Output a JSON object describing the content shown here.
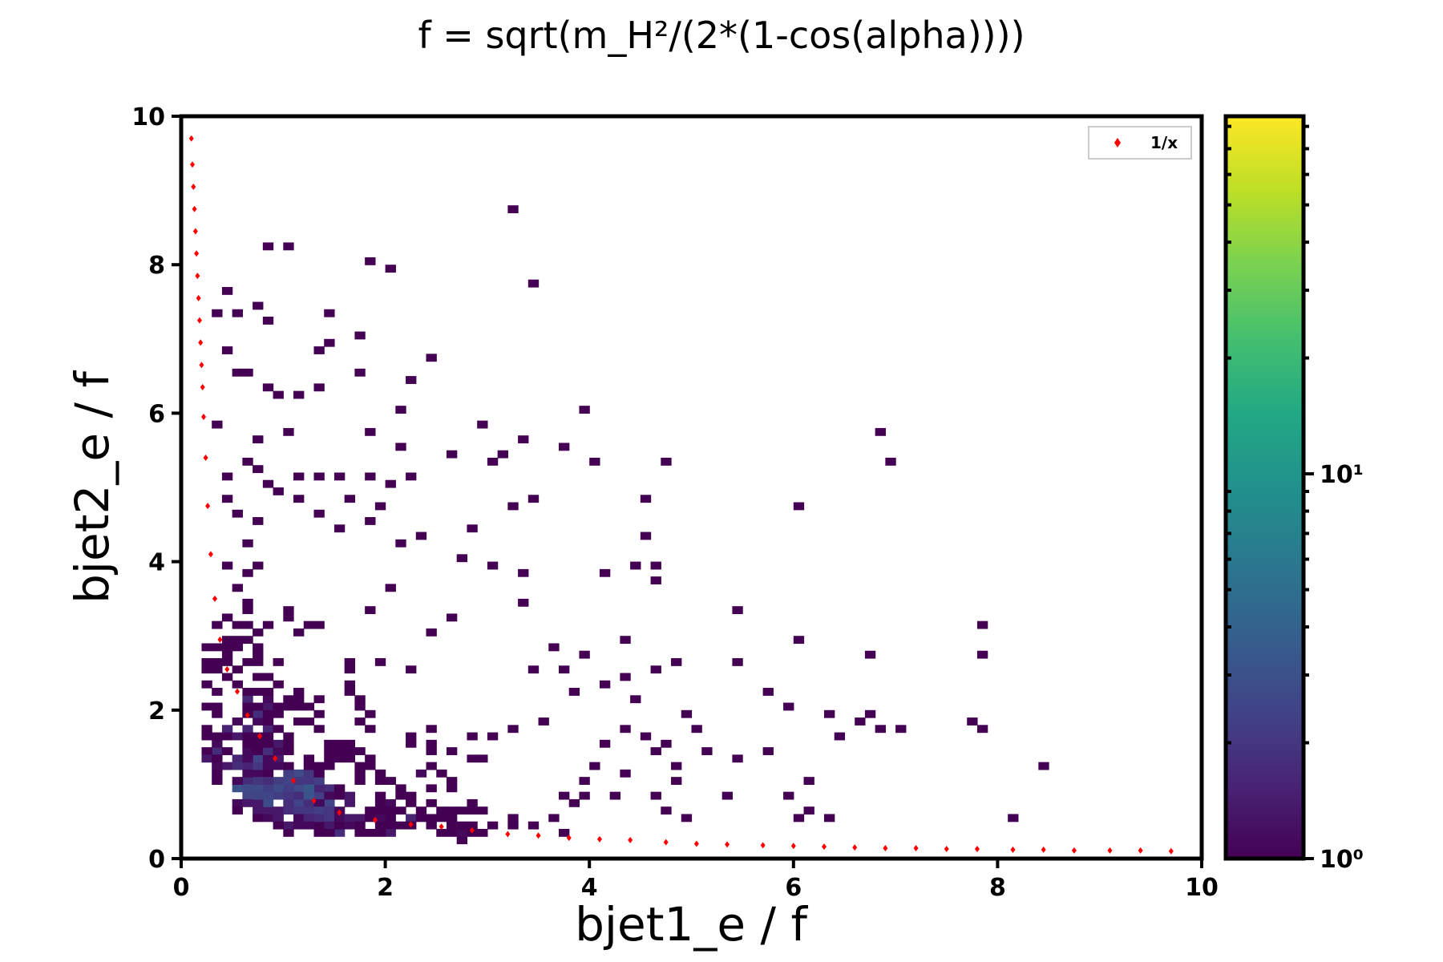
{
  "chart_data": {
    "type": "heatmap",
    "title": "f = sqrt(m_H²/(2*(1-cos(alpha))))",
    "xlabel": "bjet1_e / f",
    "ylabel": "bjet2_e / f",
    "xlim": [
      0,
      10
    ],
    "ylim": [
      0,
      10
    ],
    "xticks": [
      0,
      2,
      4,
      6,
      8,
      10
    ],
    "yticks": [
      0,
      2,
      4,
      6,
      8,
      10
    ],
    "bin_width": 0.1,
    "colorbar": {
      "scale": "log",
      "colormap": "viridis",
      "range": [
        1,
        85
      ],
      "tick_values": [
        1,
        10
      ],
      "tick_labels": [
        "10⁰",
        "10¹"
      ]
    },
    "legend": {
      "entries": [
        "1/x"
      ],
      "placement": "upper-right"
    },
    "overlay": {
      "name": "1/x",
      "color": "#ff0000",
      "marker": "diamond"
    },
    "grid": false,
    "clusters": [
      {
        "x": 1.0,
        "y": 0.85,
        "count": 85
      },
      {
        "x": 0.8,
        "y": 1.1,
        "count": 70
      },
      {
        "x": 0.6,
        "y": 1.5,
        "count": 55
      },
      {
        "x": 1.3,
        "y": 0.65,
        "count": 60
      },
      {
        "x": 0.5,
        "y": 2.0,
        "count": 35
      },
      {
        "x": 1.8,
        "y": 0.5,
        "count": 40
      },
      {
        "x": 0.45,
        "y": 2.6,
        "count": 18
      },
      {
        "x": 2.4,
        "y": 0.45,
        "count": 22
      },
      {
        "x": 1.5,
        "y": 1.2,
        "count": 25
      },
      {
        "x": 0.9,
        "y": 2.0,
        "count": 15
      },
      {
        "x": 2.2,
        "y": 0.9,
        "count": 12
      },
      {
        "x": 3.0,
        "y": 0.4,
        "count": 10
      },
      {
        "x": 0.4,
        "y": 3.2,
        "count": 8
      },
      {
        "x": 1.5,
        "y": 2.0,
        "count": 6
      },
      {
        "x": 2.5,
        "y": 1.4,
        "count": 5
      },
      {
        "x": 3.5,
        "y": 0.6,
        "count": 4
      },
      {
        "x": 1.0,
        "y": 3.0,
        "count": 4
      },
      {
        "x": 0.5,
        "y": 4.0,
        "count": 3
      },
      {
        "x": 2.0,
        "y": 2.5,
        "count": 3
      },
      {
        "x": 3.0,
        "y": 1.5,
        "count": 2
      },
      {
        "x": 4.2,
        "y": 0.8,
        "count": 2
      }
    ],
    "sparse_bins": [
      [
        3.25,
        8.75
      ],
      [
        0.85,
        8.25
      ],
      [
        1.05,
        8.25
      ],
      [
        1.85,
        8.05
      ],
      [
        2.05,
        7.95
      ],
      [
        0.45,
        7.65
      ],
      [
        3.45,
        7.75
      ],
      [
        0.75,
        7.45
      ],
      [
        0.85,
        7.25
      ],
      [
        1.45,
        7.35
      ],
      [
        0.35,
        7.35
      ],
      [
        0.55,
        7.35
      ],
      [
        1.75,
        7.05
      ],
      [
        1.35,
        6.85
      ],
      [
        1.45,
        6.95
      ],
      [
        0.45,
        6.85
      ],
      [
        2.45,
        6.75
      ],
      [
        0.55,
        6.55
      ],
      [
        0.65,
        6.55
      ],
      [
        1.75,
        6.55
      ],
      [
        0.85,
        6.35
      ],
      [
        0.95,
        6.25
      ],
      [
        1.15,
        6.25
      ],
      [
        2.25,
        6.45
      ],
      [
        1.35,
        6.35
      ],
      [
        2.15,
        6.05
      ],
      [
        3.95,
        6.05
      ],
      [
        2.95,
        5.85
      ],
      [
        6.85,
        5.75
      ],
      [
        6.95,
        5.35
      ],
      [
        4.75,
        5.35
      ],
      [
        3.35,
        5.65
      ],
      [
        3.15,
        5.45
      ],
      [
        3.75,
        5.55
      ],
      [
        4.05,
        5.35
      ],
      [
        2.65,
        5.45
      ],
      [
        6.05,
        4.75
      ],
      [
        4.55,
        4.85
      ],
      [
        4.55,
        4.35
      ],
      [
        3.05,
        5.35
      ],
      [
        4.45,
        3.95
      ],
      [
        4.65,
        3.95
      ],
      [
        4.65,
        3.75
      ],
      [
        5.45,
        3.35
      ],
      [
        7.85,
        3.15
      ],
      [
        6.05,
        2.95
      ],
      [
        6.75,
        2.75
      ],
      [
        7.85,
        2.75
      ],
      [
        5.45,
        2.65
      ],
      [
        5.75,
        2.25
      ],
      [
        5.95,
        2.05
      ],
      [
        6.35,
        1.95
      ],
      [
        6.75,
        1.95
      ],
      [
        7.05,
        1.75
      ],
      [
        7.85,
        1.75
      ],
      [
        7.75,
        1.85
      ],
      [
        8.45,
        1.25
      ],
      [
        8.15,
        0.55
      ],
      [
        6.05,
        0.55
      ],
      [
        6.15,
        1.05
      ],
      [
        5.75,
        1.45
      ],
      [
        5.45,
        1.35
      ],
      [
        5.35,
        0.85
      ],
      [
        5.95,
        0.85
      ],
      [
        4.25,
        0.85
      ],
      [
        5.15,
        1.45
      ],
      [
        6.85,
        1.75
      ],
      [
        6.65,
        1.85
      ],
      [
        6.45,
        1.65
      ],
      [
        4.85,
        1.05
      ],
      [
        4.95,
        1.95
      ],
      [
        4.65,
        1.45
      ],
      [
        4.15,
        1.55
      ],
      [
        3.85,
        2.25
      ],
      [
        3.65,
        2.85
      ],
      [
        3.95,
        2.75
      ],
      [
        2.45,
        3.05
      ],
      [
        2.65,
        3.25
      ],
      [
        3.35,
        3.45
      ],
      [
        1.85,
        3.35
      ],
      [
        2.05,
        3.65
      ],
      [
        2.15,
        4.25
      ],
      [
        2.35,
        4.35
      ],
      [
        2.75,
        4.05
      ],
      [
        3.05,
        3.95
      ],
      [
        3.35,
        3.85
      ],
      [
        2.85,
        4.45
      ],
      [
        3.25,
        4.75
      ],
      [
        3.45,
        4.85
      ],
      [
        4.15,
        3.85
      ],
      [
        1.35,
        4.65
      ],
      [
        1.55,
        4.45
      ],
      [
        1.85,
        4.55
      ],
      [
        1.65,
        4.85
      ],
      [
        1.95,
        4.75
      ],
      [
        1.15,
        5.15
      ],
      [
        1.35,
        5.15
      ],
      [
        1.55,
        5.15
      ],
      [
        1.85,
        5.15
      ],
      [
        2.05,
        5.05
      ],
      [
        2.25,
        5.15
      ],
      [
        0.35,
        5.85
      ],
      [
        0.75,
        5.65
      ],
      [
        1.05,
        5.75
      ],
      [
        1.85,
        5.75
      ],
      [
        2.15,
        5.55
      ],
      [
        0.65,
        5.35
      ],
      [
        0.75,
        5.25
      ],
      [
        0.45,
        5.15
      ],
      [
        0.85,
        5.05
      ],
      [
        0.95,
        4.95
      ],
      [
        1.15,
        4.85
      ],
      [
        0.45,
        4.85
      ],
      [
        0.55,
        4.65
      ],
      [
        0.75,
        4.55
      ],
      [
        4.05,
        1.25
      ],
      [
        4.55,
        1.65
      ],
      [
        4.35,
        1.75
      ],
      [
        4.45,
        2.15
      ],
      [
        3.55,
        1.85
      ],
      [
        4.85,
        2.65
      ],
      [
        4.65,
        2.55
      ],
      [
        4.35,
        2.45
      ],
      [
        4.15,
        2.35
      ],
      [
        3.45,
        2.55
      ],
      [
        3.75,
        2.55
      ],
      [
        4.85,
        1.25
      ],
      [
        5.05,
        1.75
      ],
      [
        6.35,
        0.55
      ],
      [
        6.15,
        0.65
      ],
      [
        4.75,
        0.65
      ],
      [
        4.95,
        0.55
      ],
      [
        4.75,
        1.55
      ],
      [
        3.95,
        1.05
      ],
      [
        4.35,
        2.95
      ]
    ],
    "curve_1_over_x": {
      "x": [
        0.1,
        0.11,
        0.12,
        0.13,
        0.14,
        0.15,
        0.16,
        0.17,
        0.18,
        0.19,
        0.2,
        0.21,
        0.22,
        0.24,
        0.26,
        0.29,
        0.33,
        0.38,
        0.45,
        0.55,
        0.65,
        0.77,
        0.92,
        1.1,
        1.3,
        1.55,
        1.9,
        2.25,
        2.55,
        2.85,
        3.2,
        3.5,
        3.8,
        4.1,
        4.4,
        4.75,
        5.05,
        5.35,
        5.7,
        6.0,
        6.3,
        6.6,
        6.9,
        7.2,
        7.5,
        7.8,
        8.15,
        8.45,
        8.75,
        9.1,
        9.4,
        9.7
      ],
      "y": [
        9.7,
        9.35,
        9.05,
        8.75,
        8.45,
        8.15,
        7.85,
        7.55,
        7.25,
        6.95,
        6.65,
        6.35,
        5.95,
        5.4,
        4.75,
        4.1,
        3.5,
        2.95,
        2.55,
        2.25,
        1.93,
        1.65,
        1.35,
        1.05,
        0.78,
        0.62,
        0.52,
        0.46,
        0.43,
        0.38,
        0.33,
        0.31,
        0.28,
        0.26,
        0.25,
        0.22,
        0.2,
        0.19,
        0.18,
        0.17,
        0.16,
        0.15,
        0.14,
        0.14,
        0.13,
        0.13,
        0.12,
        0.12,
        0.11,
        0.11,
        0.11,
        0.1
      ]
    }
  }
}
